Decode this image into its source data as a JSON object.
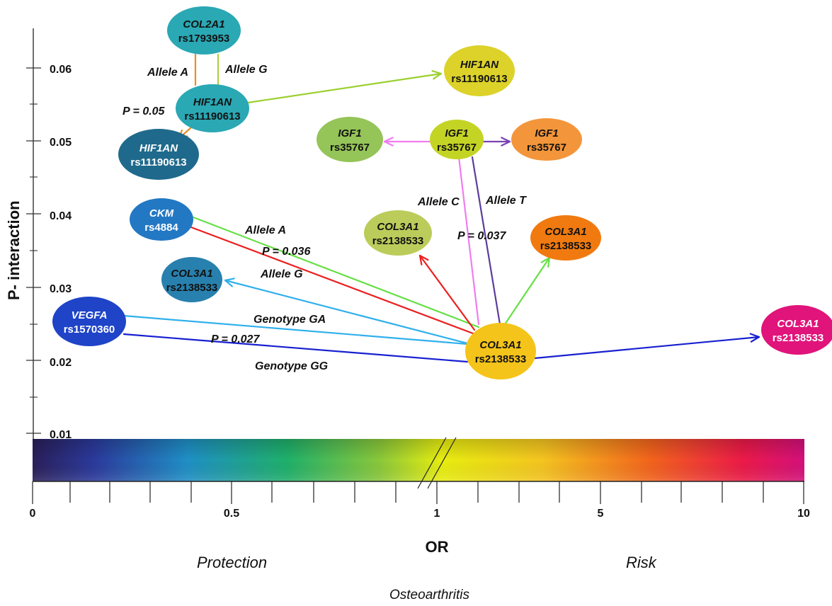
{
  "axes": {
    "y_label": "P- interaction",
    "y_ticks": [
      "0.06",
      "0.05",
      "0.04",
      "0.03",
      "0.02",
      "0.01"
    ],
    "x_label": "OR",
    "x_ticks": [
      "0",
      "0.5",
      "1",
      "5",
      "10"
    ]
  },
  "captions": {
    "protection": "Protection",
    "risk": "Risk",
    "disease": "Osteoarthritis"
  },
  "nodes": [
    {
      "id": "col2a1",
      "gene": "COL2A1",
      "snp": "rs1793953",
      "color": "#2aa8b4",
      "text_color": "#111111"
    },
    {
      "id": "hif1an_center",
      "gene": "HIF1AN",
      "snp": "rs11190613",
      "color": "#2aa8b4",
      "text_color": "#111111"
    },
    {
      "id": "hif1an_right",
      "gene": "HIF1AN",
      "snp": "rs11190613",
      "color": "#dcd22a",
      "text_color": "#111111"
    },
    {
      "id": "hif1an_lower",
      "gene": "HIF1AN",
      "snp": "rs11190613",
      "color": "#1f6a8c",
      "text_color": "#ffffff"
    },
    {
      "id": "igf1_left",
      "gene": "IGF1",
      "snp": "rs35767",
      "color": "#95c458",
      "text_color": "#111111"
    },
    {
      "id": "igf1_center",
      "gene": "IGF1",
      "snp": "rs35767",
      "color": "#c4d424",
      "text_color": "#111111"
    },
    {
      "id": "igf1_right",
      "gene": "IGF1",
      "snp": "rs35767",
      "color": "#f3953a",
      "text_color": "#111111"
    },
    {
      "id": "ckm",
      "gene": "CKM",
      "snp": "rs4884",
      "color": "#2378c4",
      "text_color": "#ffffff"
    },
    {
      "id": "col3a1_mid",
      "gene": "COL3A1",
      "snp": "rs2138533",
      "color": "#bccc5a",
      "text_color": "#111111"
    },
    {
      "id": "col3a1_orange",
      "gene": "COL3A1",
      "snp": "rs2138533",
      "color": "#f07a10",
      "text_color": "#111111"
    },
    {
      "id": "col3a1_blue",
      "gene": "COL3A1",
      "snp": "rs2138533",
      "color": "#2880ae",
      "text_color": "#111111"
    },
    {
      "id": "vegfa",
      "gene": "VEGFA",
      "snp": "rs1570360",
      "color": "#1f44c8",
      "text_color": "#ffffff"
    },
    {
      "id": "col3a1_center",
      "gene": "COL3A1",
      "snp": "rs2138533",
      "color": "#f5c41a",
      "text_color": "#111111"
    },
    {
      "id": "col3a1_risk",
      "gene": "COL3A1",
      "snp": "rs2138533",
      "color": "#e0147a",
      "text_color": "#ffffff"
    }
  ],
  "edges": [
    {
      "id": "col2a1_alleleA",
      "color": "#f08a20"
    },
    {
      "id": "col2a1_alleleG",
      "color": "#aad040"
    },
    {
      "id": "hif1an_to_right",
      "color": "#9cd030"
    },
    {
      "id": "hif1an_to_lower",
      "color": "#f08a20"
    },
    {
      "id": "igf1_to_left",
      "color": "#f07cf0"
    },
    {
      "id": "igf1_to_right",
      "color": "#7a42b4"
    },
    {
      "id": "igf1_alleleC",
      "color": "#f07cf0"
    },
    {
      "id": "igf1_alleleT",
      "color": "#5c3c9c"
    },
    {
      "id": "ckm_alleleA",
      "color": "#66e044"
    },
    {
      "id": "ckm_red",
      "color": "#ec2020"
    },
    {
      "id": "col3a1_to_blue",
      "color": "#30b0ec"
    },
    {
      "id": "vegfa_ga",
      "color": "#30b0ec"
    },
    {
      "id": "vegfa_gg",
      "color": "#1820d0"
    },
    {
      "id": "col3a1_to_mid",
      "color": "#ec2020"
    },
    {
      "id": "col3a1_to_orange",
      "color": "#66e044"
    },
    {
      "id": "col3a1_to_risk",
      "color": "#1820d0"
    }
  ],
  "edge_labels": {
    "allele_a_top": "Allele A",
    "allele_g_top": "Allele G",
    "p_005": "P = 0.05",
    "allele_c": "Allele C",
    "allele_t": "Allele T",
    "p_0037": "P = 0.037",
    "allele_a_ckm": "Allele A",
    "p_0036": "P = 0.036",
    "allele_g_col": "Allele G",
    "genotype_ga": "Genotype GA",
    "p_0027": "P = 0.027",
    "genotype_gg": "Genotype GG"
  }
}
